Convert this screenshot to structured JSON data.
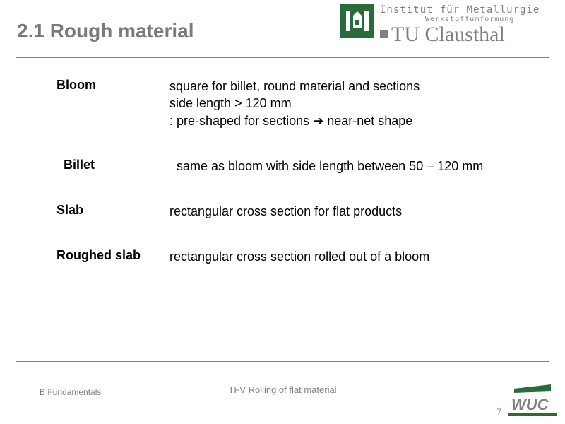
{
  "colors": {
    "accent_green": "#2a6b3a",
    "gray": "#808080",
    "text": "#000000",
    "background": "#ffffff"
  },
  "typography": {
    "title_fontsize": 28,
    "body_fontsize": 18,
    "footer_fontsize": 12
  },
  "header": {
    "slide_title": "2.1  Rough material",
    "institute_line": "Institut für Metallurgie",
    "sub_line": "Werkstoffumformung",
    "university": "TU Clausthal"
  },
  "content": {
    "items": [
      {
        "term": "Bloom",
        "desc": "square for billet, round material and sections\nside length > 120 mm\n: pre-shaped for sections ➔ near-net shape",
        "indent": false
      },
      {
        "term": "Billet",
        "desc": "same as bloom with side length between 50 – 120 mm",
        "indent": true
      },
      {
        "term": "Slab",
        "desc": "rectangular cross section for flat products",
        "indent": false
      },
      {
        "term": "Roughed slab",
        "desc": "rectangular cross section rolled out of a bloom",
        "indent": false
      }
    ]
  },
  "footer": {
    "left": "B Fundamentals",
    "center": "TFV Rolling of flat material",
    "page": "7",
    "logo_text": "WUC"
  }
}
